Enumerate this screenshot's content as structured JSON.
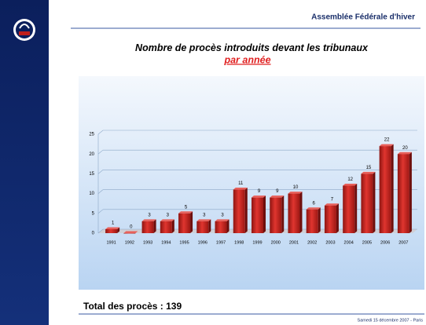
{
  "header": "Assemblée Fédérale d'hiver",
  "total": "Total des procès : 139",
  "footer": "Samedi 15 décembre 2007 - Paris",
  "chart_data": {
    "type": "bar",
    "title": "Nombre de procès introduits devant les tribunaux",
    "title_highlight": "par année",
    "categories": [
      "1991",
      "1992",
      "1993",
      "1994",
      "1995",
      "1996",
      "1997",
      "1998",
      "1999",
      "2000",
      "2001",
      "2002",
      "2003",
      "2004",
      "2005",
      "2006",
      "2007"
    ],
    "values": [
      1,
      0,
      3,
      3,
      5,
      3,
      3,
      11,
      9,
      9,
      10,
      6,
      7,
      12,
      15,
      22,
      20
    ],
    "color": "#c0201c",
    "ylim": [
      0,
      25
    ],
    "yticks": [
      0,
      5,
      10,
      15,
      20,
      25
    ],
    "grid": true
  }
}
